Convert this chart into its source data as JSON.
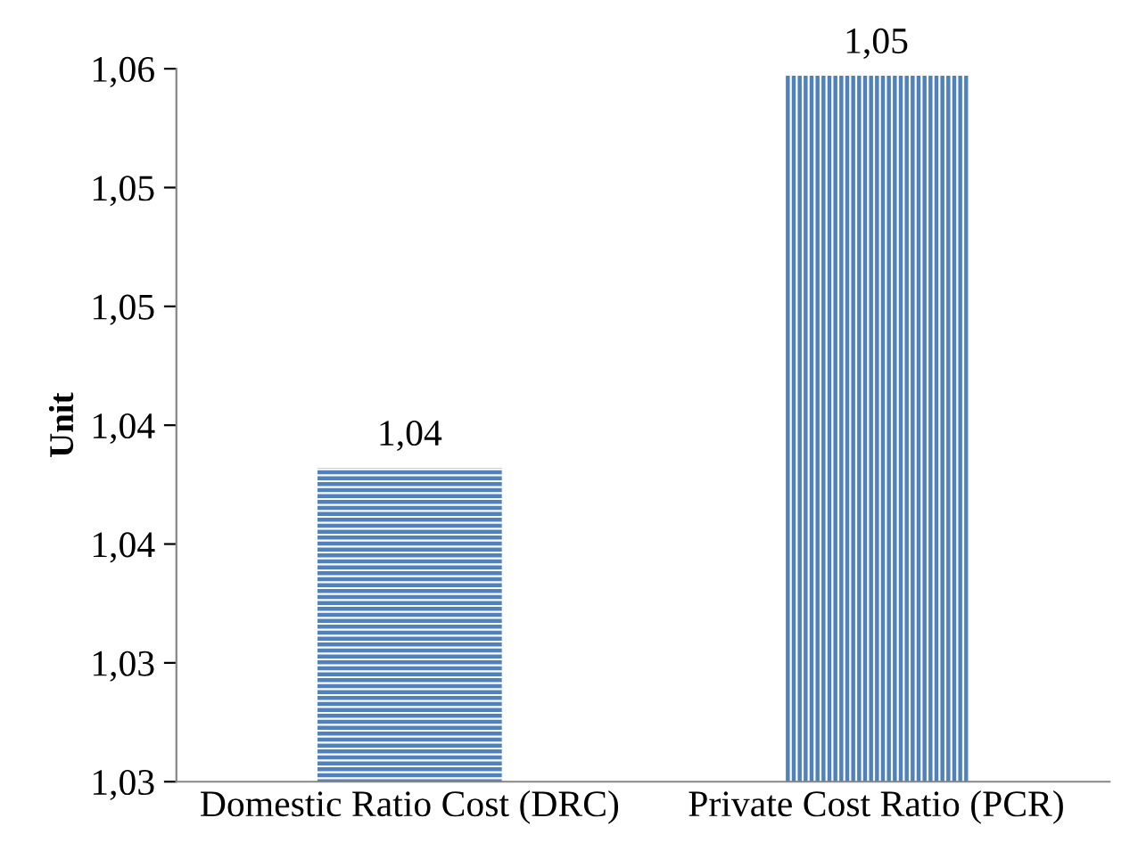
{
  "chart_data": {
    "type": "bar",
    "ylabel": "Unit",
    "categories": [
      "Domestic Ratio Cost (DRC)",
      "Private Cost Ratio (PCR)"
    ],
    "values": [
      1.0384,
      1.0549
    ],
    "value_labels": [
      "1,04",
      "1,05"
    ],
    "colors": [
      "#4f81bd",
      "#4f81bd"
    ],
    "ylim": [
      1.0252,
      1.0552
    ],
    "yticks": [
      {
        "value": 1.0252,
        "label": "1,03"
      },
      {
        "value": 1.0302,
        "label": "1,03"
      },
      {
        "value": 1.0352,
        "label": "1,04"
      },
      {
        "value": 1.0402,
        "label": "1,04"
      },
      {
        "value": 1.0452,
        "label": "1,05"
      },
      {
        "value": 1.0502,
        "label": "1,05"
      },
      {
        "value": 1.0552,
        "label": "1,06"
      }
    ],
    "grid": false,
    "legend": false
  }
}
